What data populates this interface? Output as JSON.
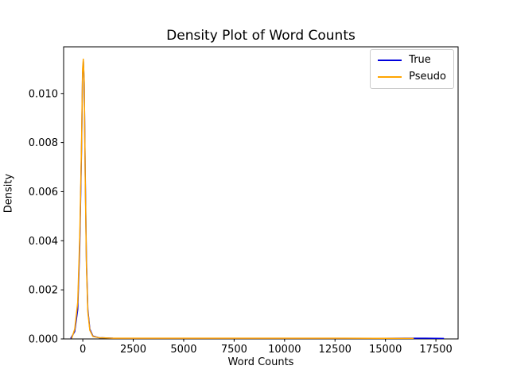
{
  "chart_data": {
    "type": "line",
    "title": "Density Plot of Word Counts",
    "xlabel": "Word Counts",
    "ylabel": "Density",
    "xlim": [
      -950,
      18600
    ],
    "ylim": [
      0,
      0.0119
    ],
    "xticks": [
      0,
      2500,
      5000,
      7500,
      10000,
      12500,
      15000,
      17500
    ],
    "xtick_labels": [
      "0",
      "2500",
      "5000",
      "7500",
      "10000",
      "12500",
      "15000",
      "17500"
    ],
    "yticks": [
      0.0,
      0.002,
      0.004,
      0.006,
      0.008,
      0.01
    ],
    "ytick_labels": [
      "0.000",
      "0.002",
      "0.004",
      "0.006",
      "0.008",
      "0.010"
    ],
    "grid": false,
    "legend_position": "upper right",
    "axis_color": "#000000",
    "series": [
      {
        "name": "True",
        "color": "#0000dd",
        "peak": {
          "x": 30,
          "density": 0.0113
        },
        "points": [
          [
            -600,
            2e-05
          ],
          [
            -400,
            0.0003
          ],
          [
            -250,
            0.0012
          ],
          [
            -150,
            0.0038
          ],
          [
            -60,
            0.0078
          ],
          [
            -10,
            0.0108
          ],
          [
            30,
            0.0113
          ],
          [
            70,
            0.0104
          ],
          [
            120,
            0.0068
          ],
          [
            180,
            0.0032
          ],
          [
            250,
            0.0012
          ],
          [
            350,
            0.0004
          ],
          [
            500,
            0.00012
          ],
          [
            800,
            5e-05
          ],
          [
            1500,
            3e-05
          ],
          [
            3000,
            2e-05
          ],
          [
            6000,
            2e-05
          ],
          [
            10000,
            2e-05
          ],
          [
            14000,
            2e-05
          ],
          [
            17000,
            3e-05
          ],
          [
            17900,
            2e-05
          ]
        ]
      },
      {
        "name": "Pseudo",
        "color": "#ffa500",
        "peak": {
          "x": 25,
          "density": 0.0114
        },
        "points": [
          [
            -550,
            2e-05
          ],
          [
            -400,
            0.0004
          ],
          [
            -250,
            0.0015
          ],
          [
            -150,
            0.0042
          ],
          [
            -60,
            0.008
          ],
          [
            -10,
            0.011
          ],
          [
            25,
            0.0114
          ],
          [
            70,
            0.0105
          ],
          [
            120,
            0.0066
          ],
          [
            180,
            0.003
          ],
          [
            250,
            0.0011
          ],
          [
            350,
            0.00035
          ],
          [
            500,
            0.0001
          ],
          [
            800,
            5e-05
          ],
          [
            1500,
            3e-05
          ],
          [
            3000,
            3e-05
          ],
          [
            6000,
            3e-05
          ],
          [
            10000,
            3e-05
          ],
          [
            13000,
            3e-05
          ],
          [
            16400,
            2e-05
          ]
        ]
      }
    ]
  }
}
